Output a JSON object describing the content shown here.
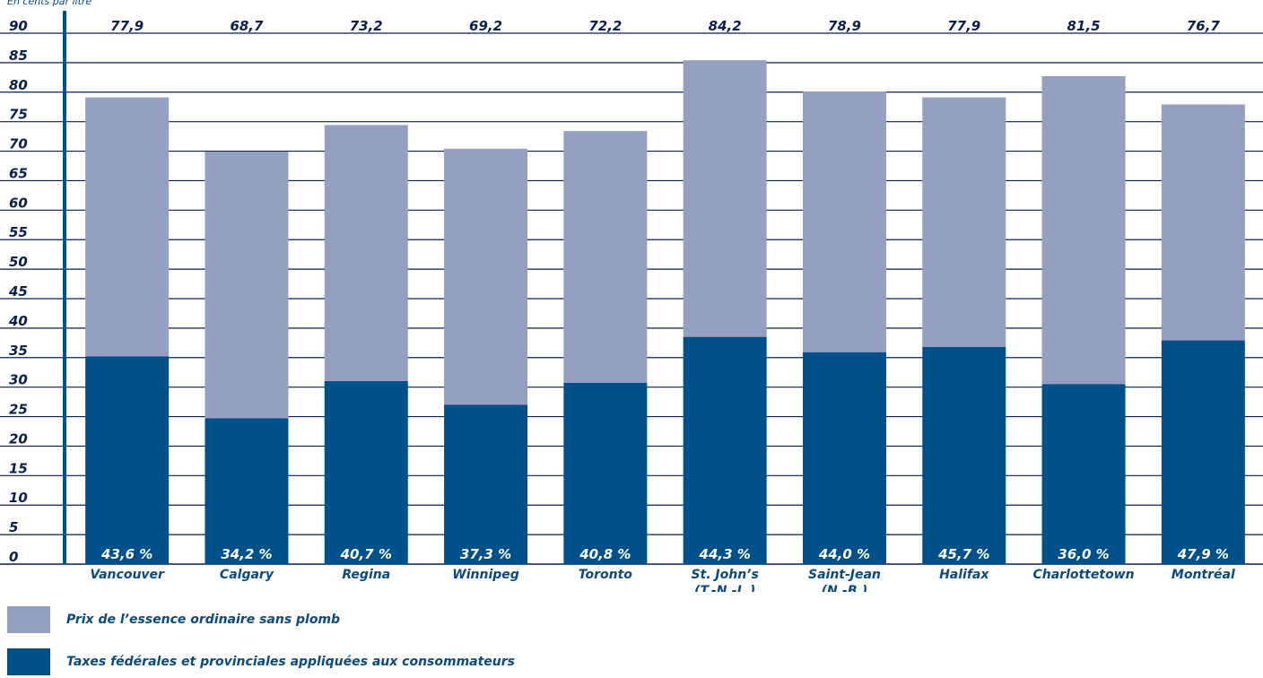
{
  "unit_label": "En cents par litre",
  "legend": [
    {
      "label": "Prix de l’essence ordinaire sans plomb",
      "color": "#949fc2"
    },
    {
      "label": "Taxes fédérales et provinciales appliquées aux consommateurs",
      "color": "#00508a"
    }
  ],
  "chart_data": {
    "type": "bar",
    "stacked": true,
    "ylim": [
      0,
      90
    ],
    "yticks": [
      "0",
      "5",
      "10",
      "15",
      "20",
      "25",
      "30",
      "35",
      "40",
      "45",
      "50",
      "55",
      "60",
      "65",
      "70",
      "75",
      "80",
      "85",
      "90"
    ],
    "categories": [
      {
        "line1": "Vancouver",
        "line2": ""
      },
      {
        "line1": "Calgary",
        "line2": ""
      },
      {
        "line1": "Regina",
        "line2": ""
      },
      {
        "line1": "Winnipeg",
        "line2": ""
      },
      {
        "line1": "Toronto",
        "line2": ""
      },
      {
        "line1": "St. John’s",
        "line2": "(T.-N.-L.)"
      },
      {
        "line1": "Saint-Jean",
        "line2": "(N.-B.)"
      },
      {
        "line1": "Halifax",
        "line2": ""
      },
      {
        "line1": "Charlottetown",
        "line2": ""
      },
      {
        "line1": "Montréal",
        "line2": "",
        "bold": true
      }
    ],
    "totals": [
      77.9,
      68.7,
      73.2,
      69.2,
      72.2,
      84.2,
      78.9,
      77.9,
      81.5,
      76.7
    ],
    "total_labels": [
      "77,9",
      "68,7",
      "73,2",
      "69,2",
      "72,2",
      "84,2",
      "78,9",
      "77,9",
      "81,5",
      "76,7"
    ],
    "taxes": [
      34.0,
      23.5,
      29.8,
      25.8,
      29.5,
      37.3,
      34.7,
      35.6,
      29.3,
      36.7
    ],
    "tax_share_labels": [
      "43,6 %",
      "34,2 %",
      "40,7 %",
      "37,3 %",
      "40,8 %",
      "44,3 %",
      "44,0 %",
      "45,7 %",
      "36,0 %",
      "47,9 %"
    ],
    "colors": {
      "price": "#949fc2",
      "tax": "#00508a",
      "grid": "#0a1f4d",
      "axis": "#00508a"
    }
  }
}
